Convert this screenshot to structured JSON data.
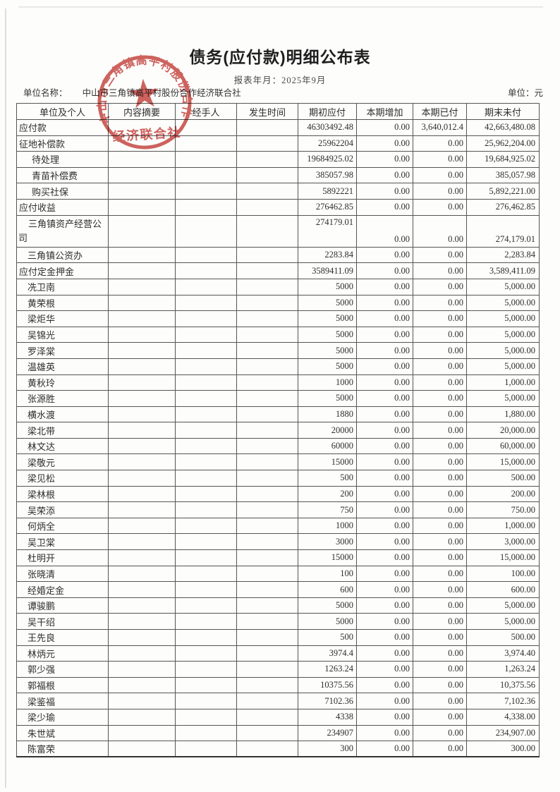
{
  "page": {
    "title": "债务(应付款)明细公布表",
    "report_period": "报表年月：2025年9月",
    "unit_name_label": "单位名称：",
    "unit_name": "中山市三角镇高平村股份合作经济联合社",
    "currency_label": "单位：元"
  },
  "stamp": {
    "arc_text": "中山市三角镇高平村股份合作",
    "center_text": "经济联合社",
    "star_glyph": "★",
    "color": "#c5423c"
  },
  "table": {
    "columns": [
      "单位及个人",
      "内容摘要",
      "经手人",
      "发生时间",
      "期初应付",
      "本期增加",
      "本期已付",
      "期末未付"
    ],
    "rows": [
      {
        "name": "应付款",
        "indent": 0,
        "opening": "46303492.48",
        "increase": "0.00",
        "paid": "3,640,012.4",
        "closing": "42,663,480.08"
      },
      {
        "name": "征地补偿款",
        "indent": 0,
        "opening": "25962204",
        "increase": "0.00",
        "paid": "0.00",
        "closing": "25,962,204.00"
      },
      {
        "name": "待处理",
        "indent": 2,
        "opening": "19684925.02",
        "increase": "0.00",
        "paid": "0.00",
        "closing": "19,684,925.02"
      },
      {
        "name": "青苗补偿费",
        "indent": 2,
        "opening": "385057.98",
        "increase": "0.00",
        "paid": "0.00",
        "closing": "385,057.98"
      },
      {
        "name": "购买社保",
        "indent": 2,
        "opening": "5892221",
        "increase": "0.00",
        "paid": "0.00",
        "closing": "5,892,221.00"
      },
      {
        "name": "应付收益",
        "indent": 0,
        "opening": "276462.85",
        "increase": "0.00",
        "paid": "0.00",
        "closing": "276,462.85"
      },
      {
        "name": "三角镇资产经营公司",
        "indent": 1,
        "opening": "274179.01",
        "increase": "0.00",
        "paid": "0.00",
        "closing": "274,179.01",
        "tall": true
      },
      {
        "name": "三角镇公资办",
        "indent": 1,
        "opening": "2283.84",
        "increase": "0.00",
        "paid": "0.00",
        "closing": "2,283.84"
      },
      {
        "name": "应付定金押金",
        "indent": 0,
        "opening": "3589411.09",
        "increase": "0.00",
        "paid": "0.00",
        "closing": "3,589,411.09"
      },
      {
        "name": "冼卫南",
        "indent": 1,
        "opening": "5000",
        "increase": "0.00",
        "paid": "0.00",
        "closing": "5,000.00"
      },
      {
        "name": "黄荣根",
        "indent": 1,
        "opening": "5000",
        "increase": "0.00",
        "paid": "0.00",
        "closing": "5,000.00"
      },
      {
        "name": "梁炬华",
        "indent": 1,
        "opening": "5000",
        "increase": "0.00",
        "paid": "0.00",
        "closing": "5,000.00"
      },
      {
        "name": "吴锦光",
        "indent": 1,
        "opening": "5000",
        "increase": "0.00",
        "paid": "0.00",
        "closing": "5,000.00"
      },
      {
        "name": "罗泽棠",
        "indent": 1,
        "opening": "5000",
        "increase": "0.00",
        "paid": "0.00",
        "closing": "5,000.00"
      },
      {
        "name": "温雄英",
        "indent": 1,
        "opening": "5000",
        "increase": "0.00",
        "paid": "0.00",
        "closing": "5,000.00"
      },
      {
        "name": "黄秋玲",
        "indent": 1,
        "opening": "1000",
        "increase": "0.00",
        "paid": "0.00",
        "closing": "1,000.00"
      },
      {
        "name": "张源胜",
        "indent": 1,
        "opening": "5000",
        "increase": "0.00",
        "paid": "0.00",
        "closing": "5,000.00"
      },
      {
        "name": "横水渡",
        "indent": 1,
        "opening": "1880",
        "increase": "0.00",
        "paid": "0.00",
        "closing": "1,880.00"
      },
      {
        "name": "梁北带",
        "indent": 1,
        "opening": "20000",
        "increase": "0.00",
        "paid": "0.00",
        "closing": "20,000.00"
      },
      {
        "name": "林文达",
        "indent": 1,
        "opening": "60000",
        "increase": "0.00",
        "paid": "0.00",
        "closing": "60,000.00"
      },
      {
        "name": "梁敬元",
        "indent": 1,
        "opening": "15000",
        "increase": "0.00",
        "paid": "0.00",
        "closing": "15,000.00"
      },
      {
        "name": "梁见松",
        "indent": 1,
        "opening": "500",
        "increase": "0.00",
        "paid": "0.00",
        "closing": "500.00"
      },
      {
        "name": "梁林根",
        "indent": 1,
        "opening": "200",
        "increase": "0.00",
        "paid": "0.00",
        "closing": "200.00"
      },
      {
        "name": "吴荣添",
        "indent": 1,
        "opening": "750",
        "increase": "0.00",
        "paid": "0.00",
        "closing": "750.00"
      },
      {
        "name": "何炳全",
        "indent": 1,
        "opening": "1000",
        "increase": "0.00",
        "paid": "0.00",
        "closing": "1,000.00"
      },
      {
        "name": "吴卫棠",
        "indent": 1,
        "opening": "3000",
        "increase": "0.00",
        "paid": "0.00",
        "closing": "3,000.00"
      },
      {
        "name": "杜明开",
        "indent": 1,
        "opening": "15000",
        "increase": "0.00",
        "paid": "0.00",
        "closing": "15,000.00"
      },
      {
        "name": "张晓清",
        "indent": 1,
        "opening": "100",
        "increase": "0.00",
        "paid": "0.00",
        "closing": "100.00"
      },
      {
        "name": "经婚定金",
        "indent": 1,
        "opening": "600",
        "increase": "0.00",
        "paid": "0.00",
        "closing": "600.00"
      },
      {
        "name": "谭骏鹏",
        "indent": 1,
        "opening": "5000",
        "increase": "0.00",
        "paid": "0.00",
        "closing": "5,000.00"
      },
      {
        "name": "吴干绍",
        "indent": 1,
        "opening": "5000",
        "increase": "0.00",
        "paid": "0.00",
        "closing": "5,000.00"
      },
      {
        "name": "王先良",
        "indent": 1,
        "opening": "500",
        "increase": "0.00",
        "paid": "0.00",
        "closing": "500.00"
      },
      {
        "name": "林炳元",
        "indent": 1,
        "opening": "3974.4",
        "increase": "0.00",
        "paid": "0.00",
        "closing": "3,974.40"
      },
      {
        "name": "郭少强",
        "indent": 1,
        "opening": "1263.24",
        "increase": "0.00",
        "paid": "0.00",
        "closing": "1,263.24"
      },
      {
        "name": "郭福根",
        "indent": 1,
        "opening": "10375.56",
        "increase": "0.00",
        "paid": "0.00",
        "closing": "10,375.56"
      },
      {
        "name": "梁鉴福",
        "indent": 1,
        "opening": "7102.36",
        "increase": "0.00",
        "paid": "0.00",
        "closing": "7,102.36"
      },
      {
        "name": "梁少瑜",
        "indent": 1,
        "opening": "4338",
        "increase": "0.00",
        "paid": "0.00",
        "closing": "4,338.00"
      },
      {
        "name": "朱世斌",
        "indent": 1,
        "opening": "234907",
        "increase": "0.00",
        "paid": "0.00",
        "closing": "234,907.00"
      },
      {
        "name": "陈富荣",
        "indent": 1,
        "opening": "300",
        "increase": "0.00",
        "paid": "0.00",
        "closing": "300.00"
      }
    ]
  }
}
